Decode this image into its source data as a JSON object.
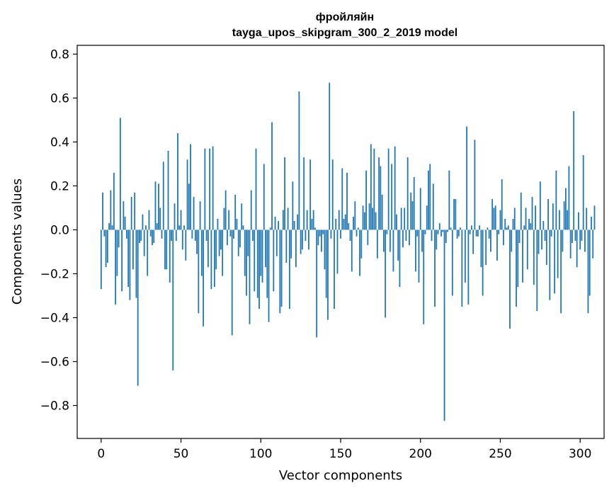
{
  "chart_data": {
    "type": "bar",
    "title_line1": "фройляйн",
    "title_line2": "tayga_upos_skipgram_300_2_2019 model",
    "xlabel": "Vector components",
    "ylabel": "Components values",
    "xlim": [
      -15,
      315
    ],
    "ylim": [
      -0.95,
      0.84
    ],
    "xticks": [
      0,
      50,
      100,
      150,
      200,
      250,
      300
    ],
    "yticks": [
      -0.8,
      -0.6,
      -0.4,
      -0.2,
      0.0,
      0.2,
      0.4,
      0.6,
      0.8
    ],
    "xtick_labels": [
      "0",
      "50",
      "100",
      "150",
      "200",
      "250",
      "300"
    ],
    "ytick_labels": [
      "−0.8",
      "−0.6",
      "−0.4",
      "−0.2",
      "0.0",
      "0.2",
      "0.4",
      "0.6",
      "0.8"
    ],
    "grid": false,
    "color": "#1f77b4",
    "values": [
      -0.27,
      0.17,
      -0.03,
      -0.17,
      -0.15,
      0.03,
      0.18,
      0.02,
      0.26,
      -0.34,
      -0.21,
      -0.08,
      0.51,
      -0.28,
      0.13,
      0.06,
      -0.04,
      -0.26,
      -0.32,
      0.15,
      -0.18,
      0.17,
      -0.31,
      -0.71,
      -0.06,
      -0.05,
      0.07,
      -0.12,
      0.02,
      -0.21,
      0.09,
      -0.03,
      -0.07,
      -0.06,
      0.22,
      0.03,
      0.21,
      0.1,
      -0.04,
      0.31,
      -0.18,
      -0.18,
      0.36,
      -0.24,
      -0.05,
      -0.64,
      0.12,
      -0.05,
      0.44,
      0.02,
      0.09,
      -0.09,
      0.02,
      -0.14,
      0.32,
      0.21,
      0.39,
      -0.04,
      0.15,
      -0.05,
      -0.11,
      -0.38,
      0.13,
      -0.21,
      -0.44,
      0.37,
      -0.05,
      -0.17,
      0.37,
      -0.27,
      0.38,
      -0.26,
      -0.18,
      0.05,
      -0.12,
      -0.09,
      -0.21,
      0.1,
      0.18,
      -0.07,
      0.09,
      -0.03,
      -0.48,
      -0.04,
      0.16,
      0.05,
      -0.12,
      -0.08,
      0.12,
      0.02,
      -0.21,
      -0.3,
      -0.12,
      -0.43,
      0.18,
      -0.05,
      -0.28,
      0.37,
      -0.31,
      -0.36,
      -0.21,
      -0.24,
      0.3,
      -0.17,
      -0.31,
      -0.42,
      0.01,
      0.49,
      -0.28,
      0.06,
      -0.12,
      0.04,
      -0.38,
      -0.35,
      0.09,
      0.33,
      -0.15,
      0.1,
      -0.36,
      -0.13,
      0.22,
      0.04,
      -0.17,
      0.07,
      0.63,
      -0.11,
      -0.09,
      0.33,
      -0.05,
      0.09,
      -0.09,
      0.32,
      0.05,
      0.09,
      0.01,
      -0.49,
      -0.07,
      -0.03,
      -0.1,
      -0.02,
      -0.18,
      -0.31,
      -0.41,
      0.67,
      -0.04,
      0.32,
      -0.36,
      0.05,
      -0.2,
      0.09,
      -0.04,
      0.28,
      0.05,
      0.07,
      0.26,
      0.03,
      -0.05,
      -0.19,
      0.06,
      0.13,
      -0.03,
      0.01,
      -0.21,
      -0.13,
      0.11,
      0.08,
      0.27,
      -0.07,
      0.12,
      0.39,
      0.1,
      0.37,
      0.08,
      -0.13,
      0.33,
      0.29,
      0.16,
      -0.1,
      -0.4,
      -0.02,
      0.37,
      -0.1,
      0.3,
      -0.19,
      0.38,
      0.07,
      -0.14,
      -0.26,
      0.1,
      -0.08,
      0.1,
      -0.05,
      0.33,
      -0.07,
      0.17,
      0.13,
      0.24,
      -0.19,
      -0.03,
      -0.24,
      0.19,
      -0.1,
      -0.43,
      -0.02,
      0.11,
      0.27,
      0.3,
      -0.05,
      0.21,
      -0.35,
      -0.09,
      -0.02,
      0.03,
      -0.03,
      -0.01,
      -0.87,
      -0.06,
      -0.01,
      0.27,
      0.01,
      -0.3,
      0.14,
      0.14,
      -0.04,
      -0.03,
      0.01,
      -0.35,
      0.0,
      -0.24,
      0.47,
      -0.34,
      -0.02,
      0.02,
      -0.11,
      0.41,
      -0.03,
      -0.03,
      0.02,
      -0.17,
      -0.3,
      0.0,
      -0.16,
      0.01,
      -0.04,
      -0.1,
      0.14,
      0.1,
      0.11,
      -0.14,
      -0.02,
      0.09,
      0.23,
      -0.07,
      0.05,
      0.01,
      0.02,
      -0.45,
      -0.1,
      0.05,
      0.1,
      -0.35,
      -0.26,
      -0.06,
      0.17,
      -0.24,
      0.02,
      0.1,
      -0.18,
      0.05,
      0.03,
      0.15,
      -0.25,
      0.11,
      -0.37,
      -0.11,
      0.22,
      -0.09,
      0.04,
      -0.05,
      -0.16,
      0.14,
      -0.32,
      -0.03,
      0.12,
      -0.29,
      0.27,
      -0.22,
      0.09,
      -0.38,
      -0.1,
      0.13,
      0.19,
      0.09,
      0.29,
      -0.13,
      -0.06,
      0.54,
      -0.05,
      -0.17,
      0.08,
      -0.09,
      -0.05,
      0.34,
      -0.1,
      0.1,
      -0.38,
      -0.3,
      0.06,
      -0.13,
      0.11
    ]
  }
}
